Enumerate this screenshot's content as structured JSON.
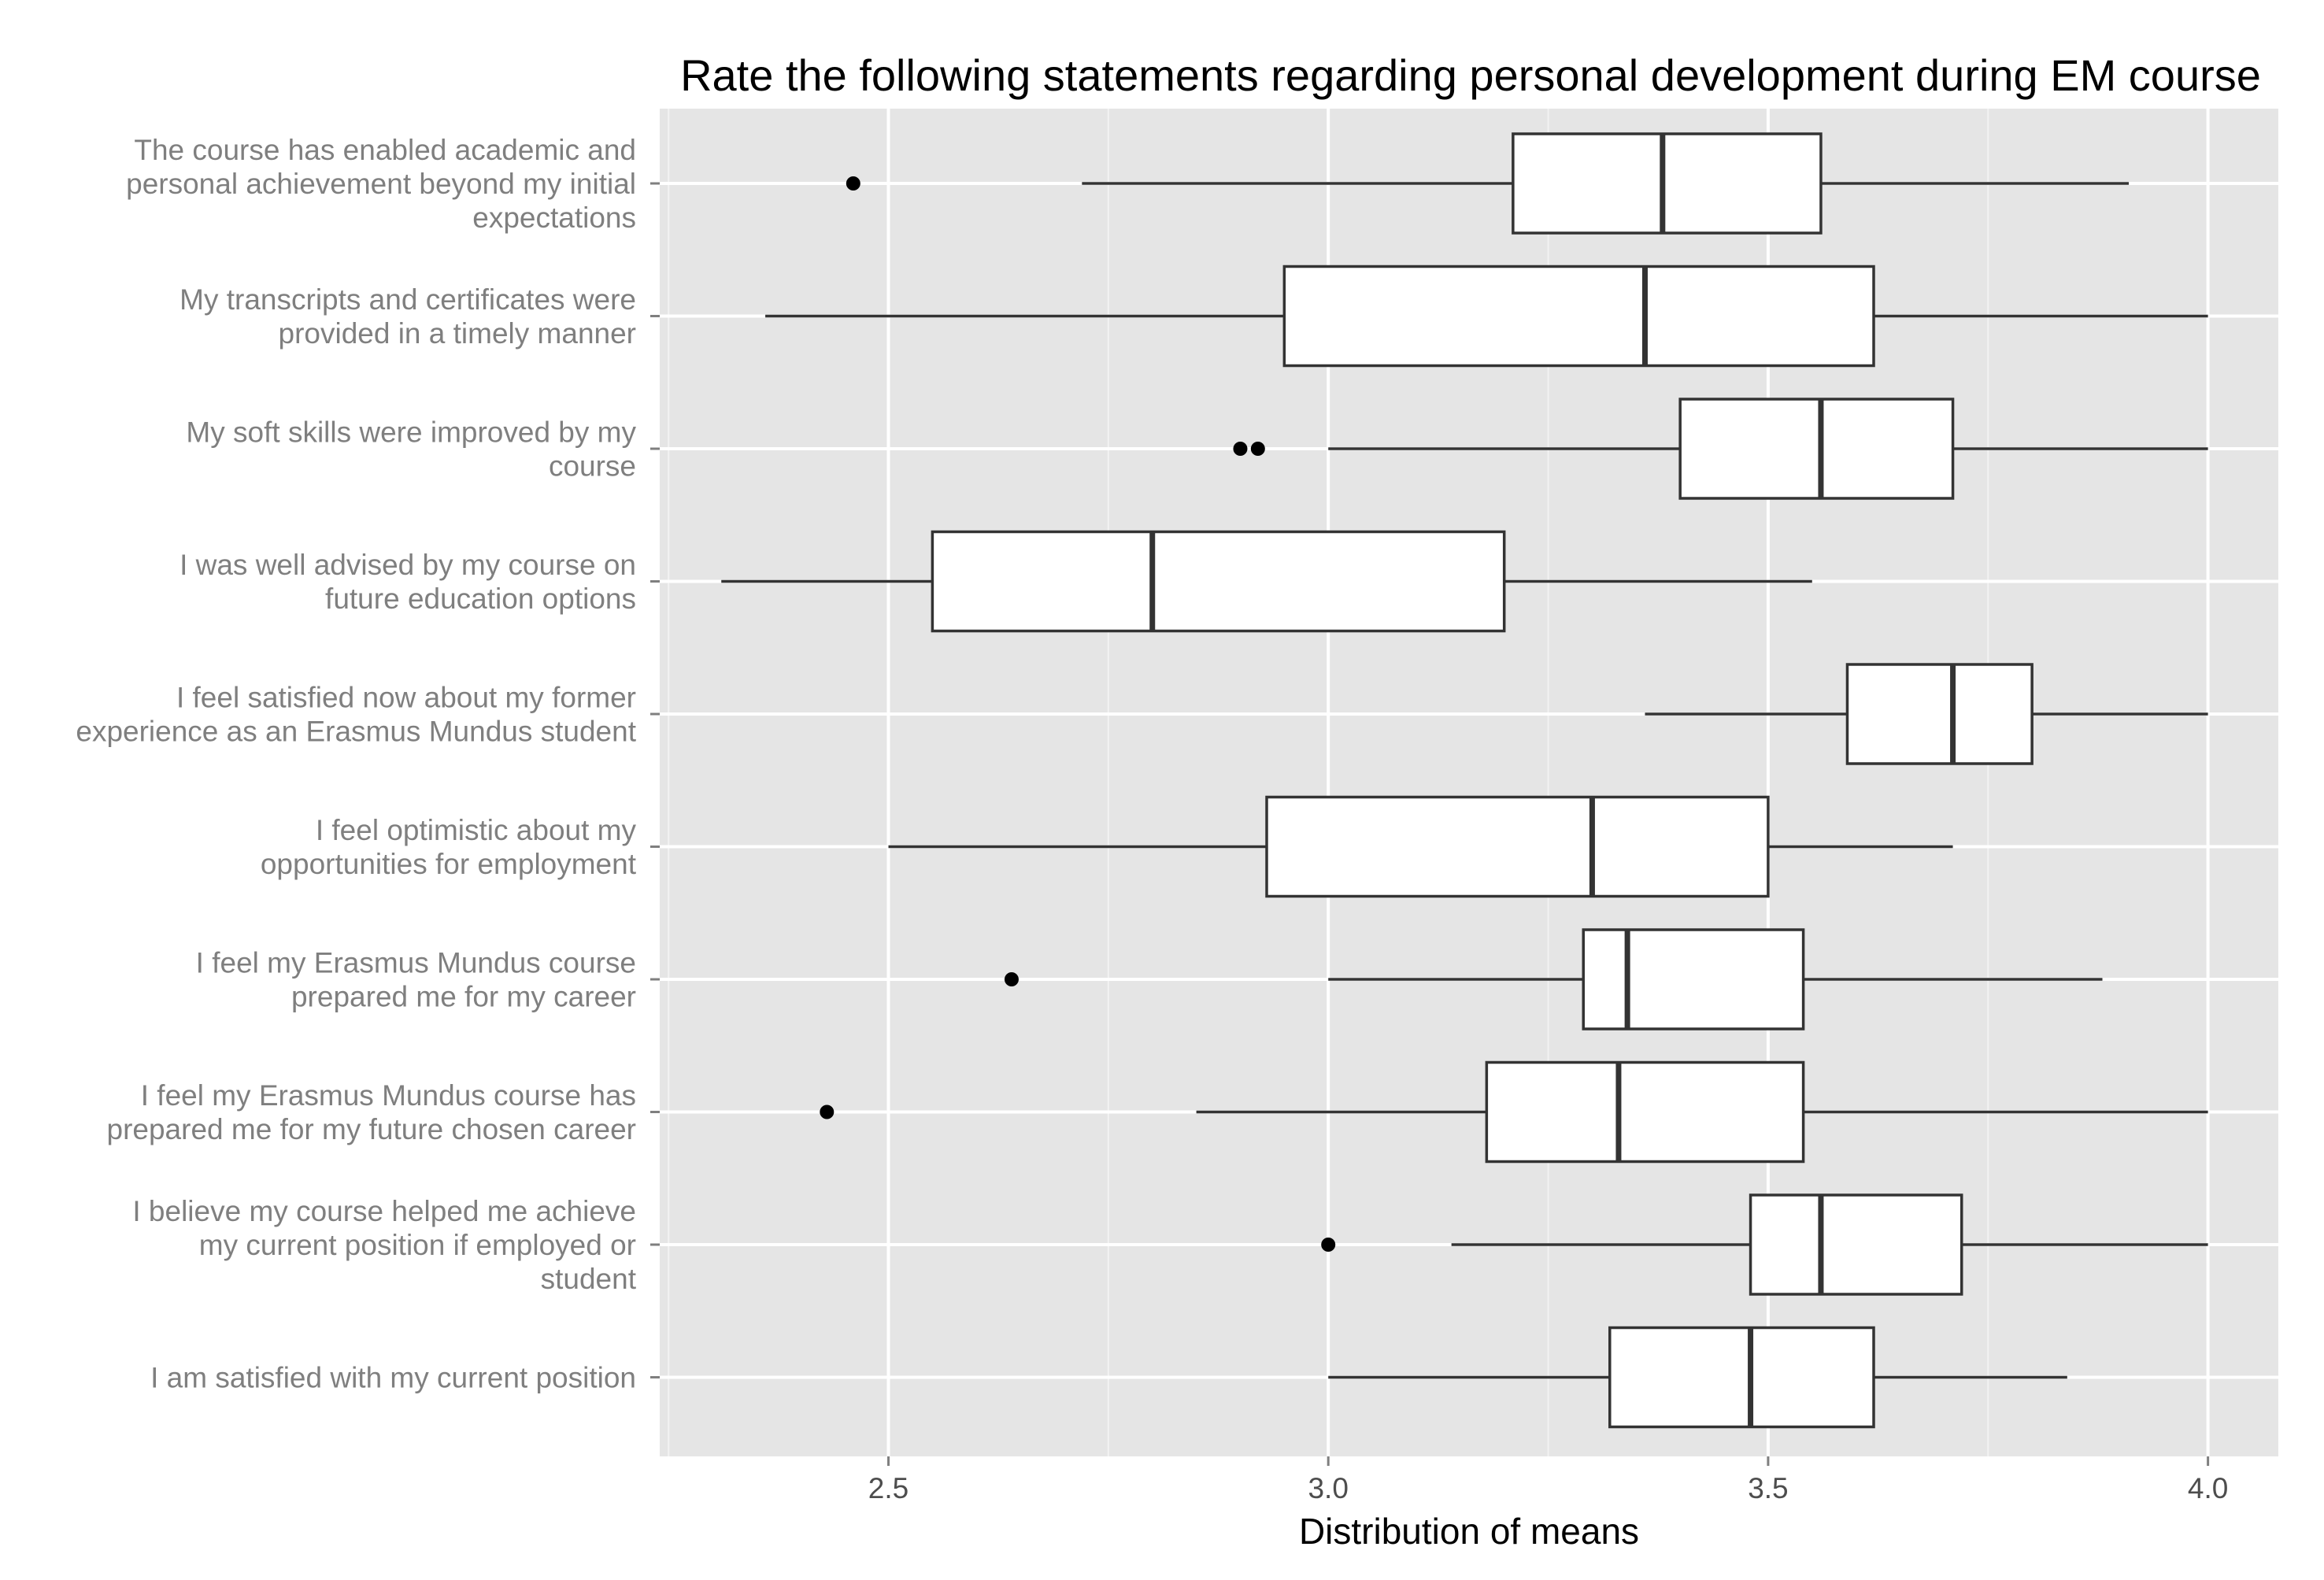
{
  "chart_data": {
    "type": "boxplot",
    "orientation": "horizontal",
    "title": "Rate the following statements regarding personal development during EM course",
    "xlabel": "Distribution of means",
    "ylabel": "",
    "xlim": [
      2.24,
      4.08
    ],
    "x_ticks": [
      2.5,
      3.0,
      3.5,
      4.0
    ],
    "x_tick_labels": [
      "2.5",
      "3.0",
      "3.5",
      "4.0"
    ],
    "grid": true,
    "legend": "none",
    "colors": {
      "panel_bg": "#e5e5e5",
      "grid_major": "#ffffff",
      "grid_minor": "#f2f2f2",
      "box_fill": "#ffffff",
      "box_stroke": "#333333",
      "outlier": "#000000"
    },
    "categories": [
      {
        "label_lines": [
          "The course has enabled academic and",
          "personal achievement beyond my initial",
          "expectations"
        ],
        "whisker_low": 2.72,
        "q1": 3.21,
        "median": 3.38,
        "q3": 3.56,
        "whisker_high": 3.91,
        "outliers": [
          2.46
        ]
      },
      {
        "label_lines": [
          "My transcripts and certificates were",
          "provided in a timely manner"
        ],
        "whisker_low": 2.36,
        "q1": 2.95,
        "median": 3.36,
        "q3": 3.62,
        "whisker_high": 4.0,
        "outliers": []
      },
      {
        "label_lines": [
          "My soft skills were improved by my",
          "course"
        ],
        "whisker_low": 3.0,
        "q1": 3.4,
        "median": 3.56,
        "q3": 3.71,
        "whisker_high": 4.0,
        "outliers": [
          2.9,
          2.92
        ]
      },
      {
        "label_lines": [
          "I was well advised by my course on",
          "future education options"
        ],
        "whisker_low": 2.31,
        "q1": 2.55,
        "median": 2.8,
        "q3": 3.2,
        "whisker_high": 3.55,
        "outliers": []
      },
      {
        "label_lines": [
          "I feel satisfied now about my former",
          "experience as an Erasmus Mundus student"
        ],
        "whisker_low": 3.36,
        "q1": 3.59,
        "median": 3.71,
        "q3": 3.8,
        "whisker_high": 4.0,
        "outliers": []
      },
      {
        "label_lines": [
          "I feel optimistic about my",
          "opportunities for employment"
        ],
        "whisker_low": 2.5,
        "q1": 2.93,
        "median": 3.3,
        "q3": 3.5,
        "whisker_high": 3.71,
        "outliers": []
      },
      {
        "label_lines": [
          "I feel my Erasmus Mundus course",
          "prepared me for my career"
        ],
        "whisker_low": 3.0,
        "q1": 3.29,
        "median": 3.34,
        "q3": 3.54,
        "whisker_high": 3.88,
        "outliers": [
          2.64
        ]
      },
      {
        "label_lines": [
          "I feel my Erasmus Mundus course has",
          "prepared me for my future chosen career"
        ],
        "whisker_low": 2.85,
        "q1": 3.18,
        "median": 3.33,
        "q3": 3.54,
        "whisker_high": 4.0,
        "outliers": [
          2.43
        ]
      },
      {
        "label_lines": [
          "I believe my course helped me achieve",
          "my current position if employed or",
          "student"
        ],
        "whisker_low": 3.14,
        "q1": 3.48,
        "median": 3.56,
        "q3": 3.72,
        "whisker_high": 4.0,
        "outliers": [
          3.0
        ]
      },
      {
        "label_lines": [
          "I am satisfied with my current position"
        ],
        "whisker_low": 3.0,
        "q1": 3.32,
        "median": 3.48,
        "q3": 3.62,
        "whisker_high": 3.84,
        "outliers": []
      }
    ]
  }
}
